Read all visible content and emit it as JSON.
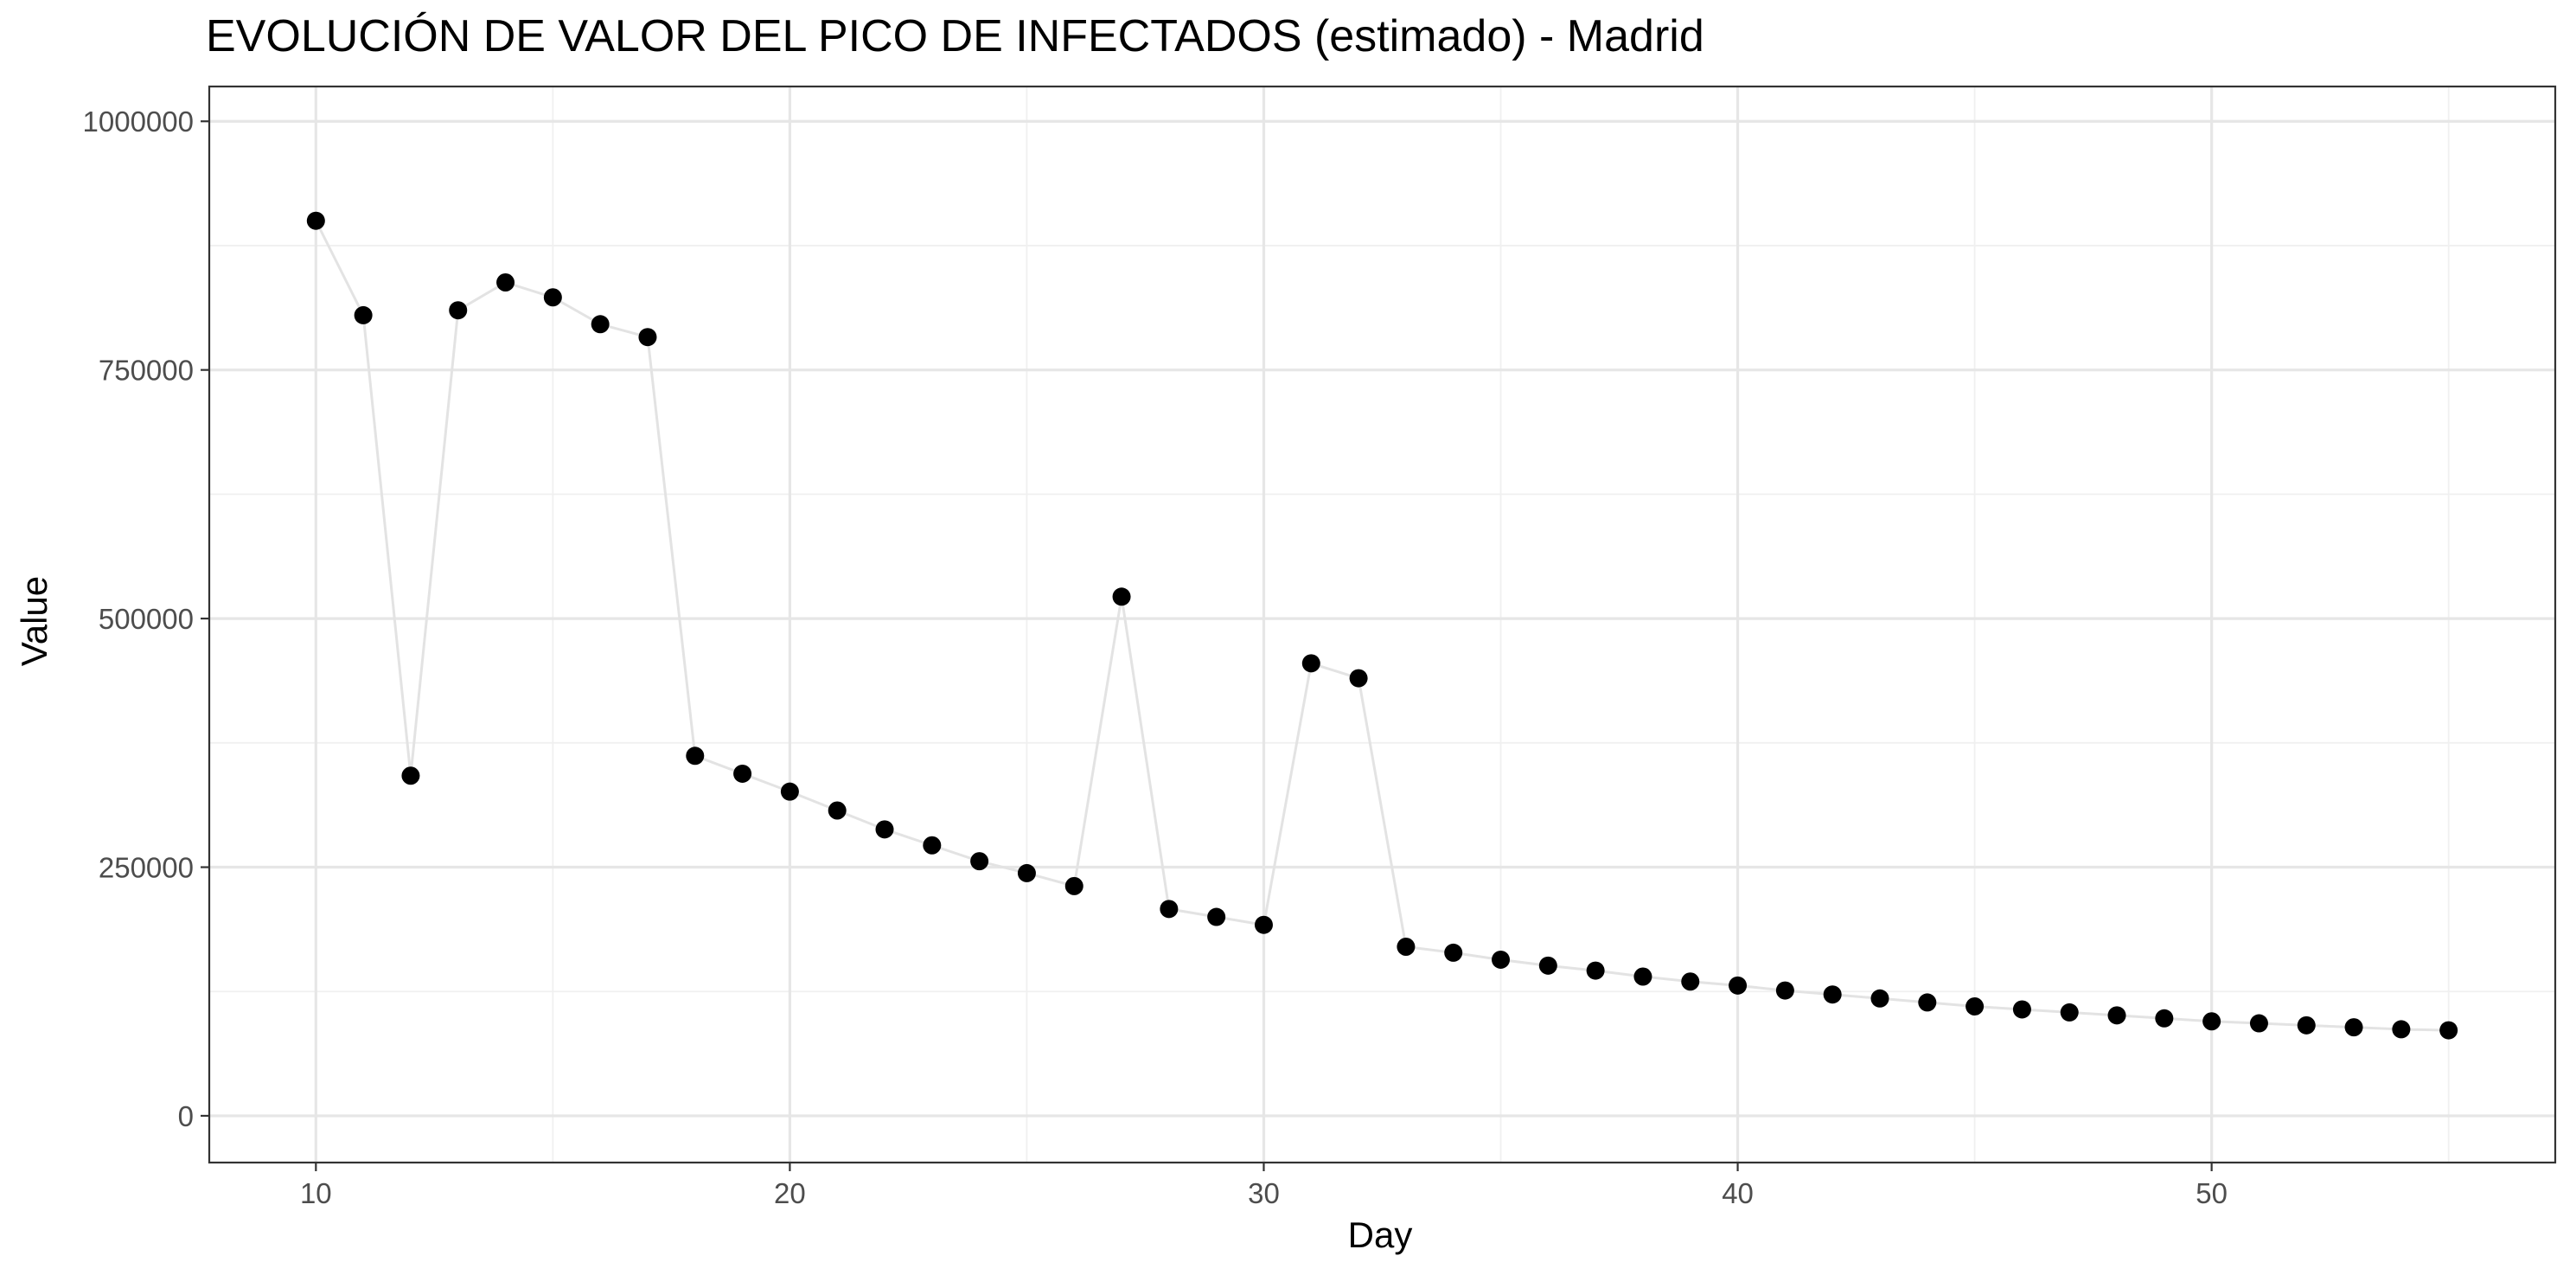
{
  "chart_data": {
    "type": "scatter",
    "title": "EVOLUCIÓN DE VALOR DEL PICO DE INFECTADOS (estimado) - Madrid",
    "xlabel": "Day",
    "ylabel": "Value",
    "xlim": [
      7.75,
      57.25
    ],
    "ylim": [
      -47000,
      1035000
    ],
    "x_ticks": [
      10,
      20,
      30,
      40,
      50
    ],
    "x_tick_labels": [
      "10",
      "20",
      "30",
      "40",
      "50"
    ],
    "x_minor_ticks": [
      15,
      25,
      35,
      45,
      55
    ],
    "y_ticks": [
      0,
      250000,
      500000,
      750000,
      1000000
    ],
    "y_tick_labels": [
      "0",
      "250000",
      "500000",
      "750000",
      "1000000"
    ],
    "y_minor_ticks": [
      125000,
      375000,
      625000,
      875000
    ],
    "grid": true,
    "line_color": "#e3e3e3",
    "point_color": "#000000",
    "series": [
      {
        "x": [
          10,
          11,
          12,
          13,
          14,
          15,
          16,
          17,
          18,
          19,
          20,
          21,
          22,
          23,
          24,
          25,
          26,
          27,
          28,
          29,
          30,
          31,
          32,
          33,
          34,
          35,
          36,
          37,
          38,
          39,
          40,
          41,
          42,
          43,
          44,
          45,
          46,
          47,
          48,
          49,
          50,
          51,
          52,
          53,
          54,
          55
        ],
        "values": [
          900000,
          805000,
          342000,
          810000,
          838000,
          823000,
          796000,
          783000,
          362000,
          344000,
          326000,
          307000,
          288000,
          272000,
          256000,
          244000,
          231000,
          522000,
          208000,
          200000,
          192000,
          455000,
          440000,
          170000,
          164000,
          157000,
          151000,
          146000,
          140000,
          135000,
          131000,
          126000,
          122000,
          118000,
          114000,
          110000,
          107000,
          104000,
          101000,
          98000,
          95000,
          93000,
          91000,
          89000,
          87000,
          86000
        ]
      }
    ]
  }
}
